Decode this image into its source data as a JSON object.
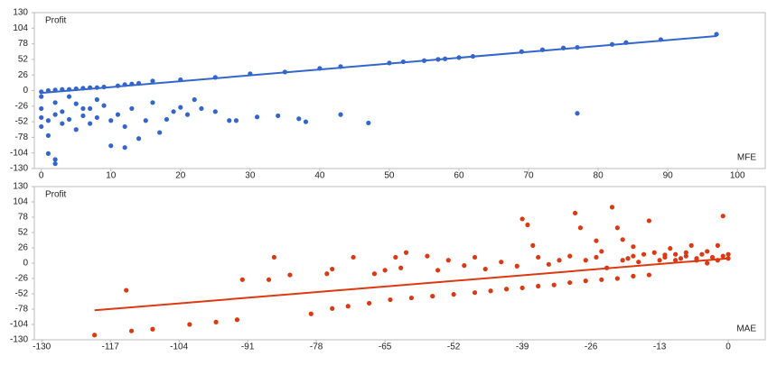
{
  "chart_data": [
    {
      "type": "scatter",
      "y_label": "Profit",
      "x_label": "MFE",
      "color": "#3366cc",
      "xlim": [
        -1,
        104
      ],
      "xticks": [
        0,
        10,
        20,
        30,
        40,
        50,
        60,
        70,
        80,
        90,
        100
      ],
      "ylim": [
        -130,
        130
      ],
      "yticks": [
        -130,
        -104,
        -78,
        -52,
        -26,
        0,
        26,
        52,
        78,
        104,
        130
      ],
      "x": [
        16,
        20,
        25,
        30,
        35,
        40,
        43,
        50,
        52,
        55,
        57,
        58,
        60,
        62,
        69,
        72,
        75,
        77,
        82,
        84,
        89,
        97,
        0,
        1,
        2,
        3,
        4,
        5,
        6,
        7,
        8,
        9,
        11,
        12,
        13,
        14,
        0,
        0,
        0,
        0,
        1,
        1,
        2,
        2,
        3,
        3,
        4,
        5,
        5,
        6,
        7,
        7,
        8,
        9,
        10,
        10,
        11,
        12,
        12,
        13,
        14,
        15,
        16,
        17,
        18,
        19,
        20,
        21,
        22,
        23,
        25,
        27,
        28,
        31,
        34,
        37,
        38,
        43,
        47,
        77,
        2,
        2,
        1,
        6,
        8,
        4
      ],
      "y": [
        16,
        18,
        22,
        28,
        31,
        37,
        40,
        46,
        48,
        50,
        52,
        53,
        55,
        57,
        65,
        68,
        71,
        72,
        77,
        80,
        85,
        94,
        -2,
        0,
        1,
        2,
        2,
        3,
        4,
        5,
        5,
        6,
        8,
        10,
        11,
        12,
        -10,
        -30,
        -45,
        -60,
        -50,
        -75,
        -20,
        -40,
        -55,
        -35,
        -48,
        -22,
        -65,
        -42,
        -30,
        -55,
        -45,
        -25,
        -50,
        -92,
        -40,
        -95,
        -60,
        -30,
        -80,
        -50,
        -20,
        -70,
        -48,
        -35,
        -28,
        -40,
        -15,
        -30,
        -35,
        -50,
        -50,
        -44,
        -42,
        -47,
        -52,
        -40,
        -54,
        -38,
        -115,
        -122,
        -105,
        -30,
        -15,
        -10
      ],
      "trend": {
        "x": [
          0,
          97
        ],
        "y": [
          -4,
          91
        ]
      }
    },
    {
      "type": "scatter",
      "y_label": "Profit",
      "x_label": "MAE",
      "color": "#dc3912",
      "xlim": [
        -131.4,
        7
      ],
      "xticks": [
        -130,
        -117,
        -104,
        -91,
        -78,
        -65,
        -52,
        -39,
        -26,
        -13,
        0
      ],
      "ylim": [
        -130,
        130
      ],
      "yticks": [
        -130,
        -104,
        -78,
        -52,
        -26,
        0,
        26,
        52,
        78,
        104,
        130
      ],
      "x": [
        -75,
        -72,
        -68,
        -64,
        -60,
        -56,
        -52,
        -48,
        -45,
        -42,
        -39,
        -36,
        -33,
        -30,
        -27,
        -24,
        -21,
        -18,
        -15,
        -120,
        -114,
        -113,
        -109,
        -102,
        -97,
        -93,
        -92,
        -87,
        -86,
        -83,
        -79,
        -76,
        -75,
        -71,
        -67,
        -65,
        -63,
        -62,
        -61,
        -57,
        -55,
        -53,
        -50,
        -48,
        -46,
        -43,
        -40,
        -39,
        -38,
        -37,
        -36,
        -34,
        -32,
        -30,
        -29,
        -28,
        -27,
        -25,
        -24,
        -23,
        -22,
        -21,
        -20,
        -19,
        -18,
        -17,
        -16,
        -15,
        -14,
        -13,
        -12,
        -11,
        -10,
        -9,
        -8,
        -7,
        -6,
        -5,
        -4,
        -3,
        -2,
        -1,
        -1,
        0,
        0,
        -6,
        -8,
        -10,
        -12,
        -2,
        -4,
        -20,
        -18,
        -25
      ],
      "y": [
        -77,
        -73,
        -68,
        -62,
        -59,
        -56,
        -53,
        -50,
        -47,
        -44,
        -42,
        -39,
        -37,
        -33,
        -30,
        -28,
        -26,
        -22,
        -20,
        -122,
        -46,
        -115,
        -112,
        -104,
        -100,
        -96,
        -28,
        -28,
        10,
        -20,
        -86,
        -18,
        -10,
        10,
        -18,
        -12,
        10,
        -8,
        18,
        12,
        -12,
        5,
        -4,
        10,
        -10,
        2,
        -5,
        75,
        65,
        30,
        10,
        -2,
        5,
        12,
        85,
        60,
        5,
        38,
        20,
        -8,
        95,
        60,
        40,
        8,
        28,
        2,
        15,
        72,
        18,
        5,
        10,
        25,
        15,
        8,
        12,
        30,
        5,
        15,
        20,
        10,
        5,
        12,
        80,
        8,
        15,
        8,
        18,
        5,
        14,
        30,
        0,
        5,
        12,
        10
      ],
      "trend": {
        "x": [
          -120,
          0
        ],
        "y": [
          -80,
          8
        ]
      }
    }
  ]
}
